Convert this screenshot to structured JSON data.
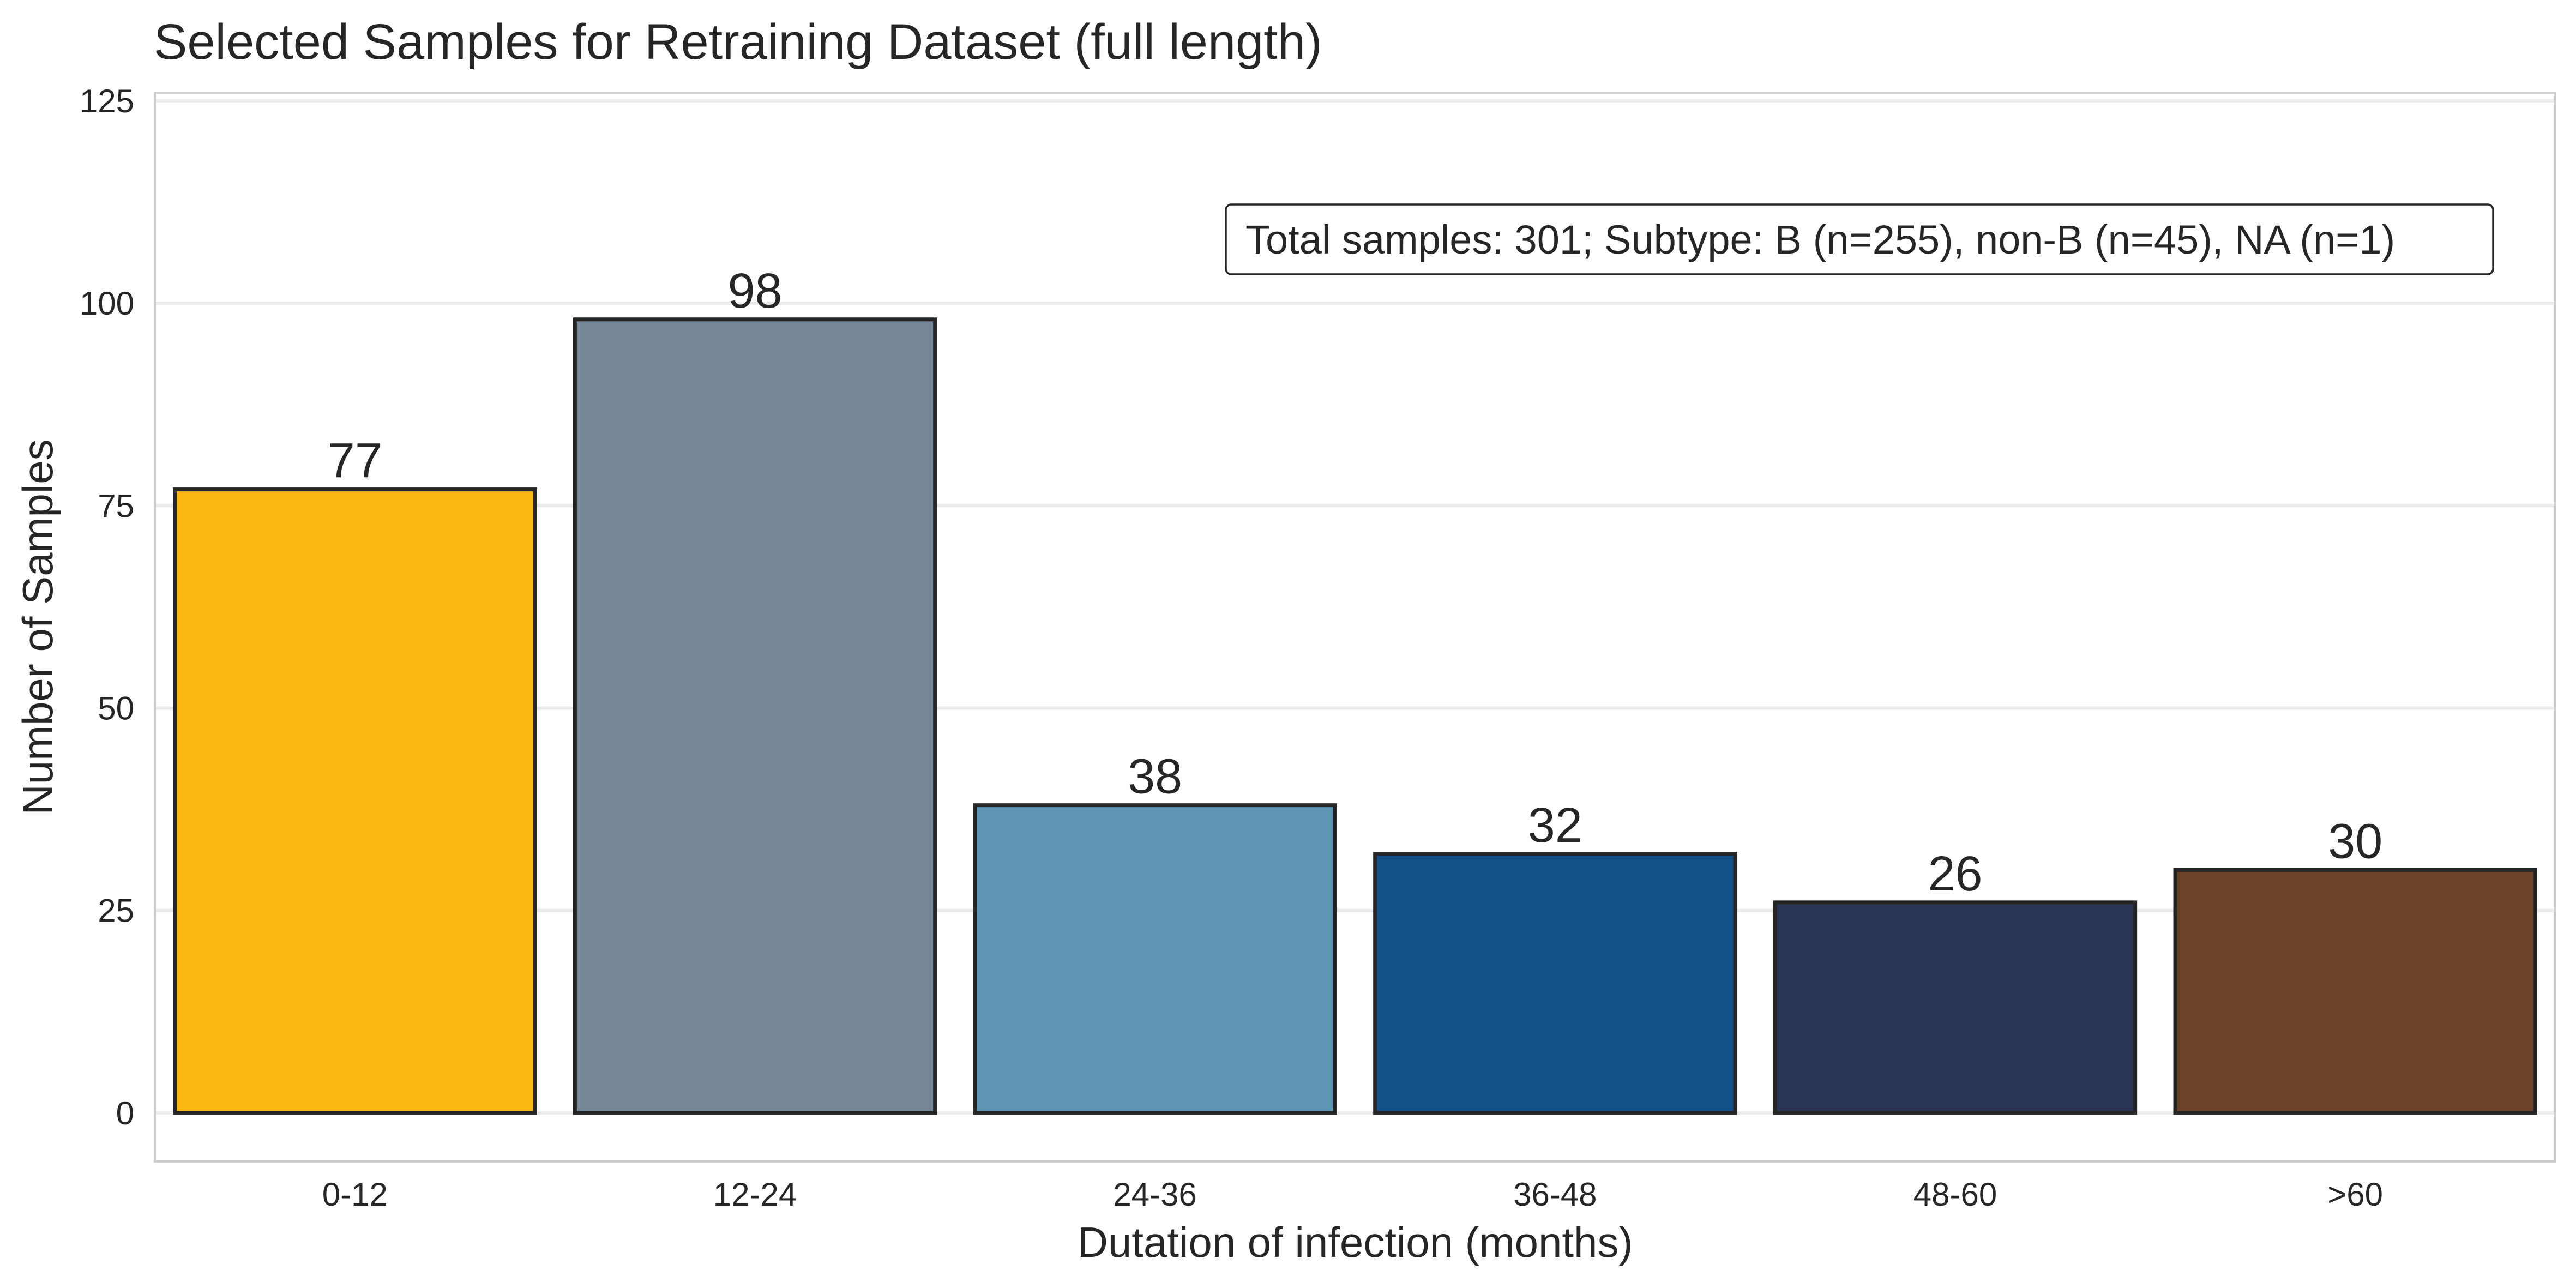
{
  "chart_data": {
    "type": "bar",
    "title": "Selected Samples for Retraining Dataset (full length)",
    "xlabel": "Dutation of infection (months)",
    "ylabel": "Number of Samples",
    "categories": [
      "0-12",
      "12-24",
      "24-36",
      "36-48",
      "48-60",
      ">60"
    ],
    "values": [
      77,
      98,
      38,
      32,
      26,
      30
    ],
    "data_labels": [
      "77",
      "98",
      "38",
      "32",
      "26",
      "30"
    ],
    "colors": [
      "#FDB813",
      "#778899",
      "#5E94B4",
      "#13508A",
      "#293552",
      "#6B4329"
    ],
    "ylim": [
      -6,
      126
    ],
    "yticks": [
      0,
      25,
      50,
      75,
      100,
      125
    ],
    "ytick_labels": [
      "0",
      "25",
      "50",
      "75",
      "100",
      "125"
    ],
    "grid": "horizontal",
    "annotation": "Total samples: 301; Subtype: B (n=255), non-B (n=45), NA (n=1)",
    "annotation_position": "top-right"
  }
}
